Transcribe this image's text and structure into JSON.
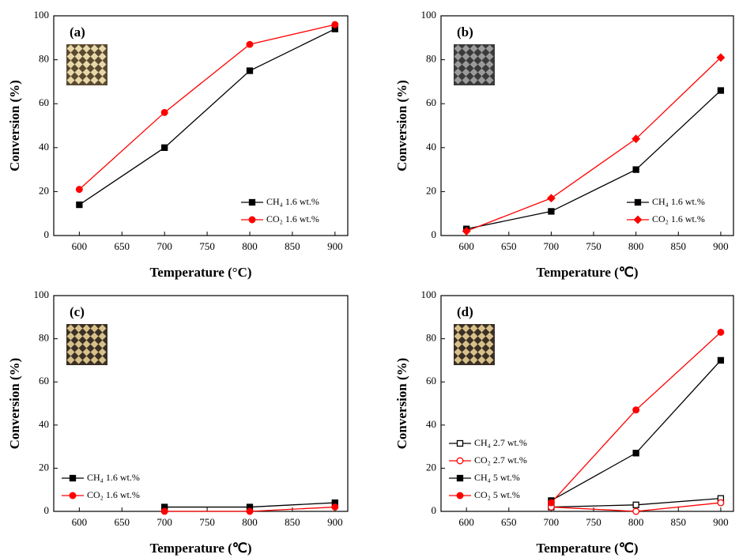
{
  "chart_data": [
    {
      "type": "line",
      "title": "(a)",
      "x_label": "Temperature (°C)",
      "y_label": "Conversion (%)",
      "x": [
        600,
        700,
        800,
        900
      ],
      "xlim": [
        570,
        915
      ],
      "xticks": [
        600,
        650,
        700,
        750,
        800,
        850,
        900
      ],
      "ylim": [
        0,
        100
      ],
      "yticks": [
        0,
        20,
        40,
        60,
        80,
        100
      ],
      "legend": "lower right",
      "series": [
        {
          "name": "CH₄ 1.6 wt.%",
          "color": "#000000",
          "marker": "square",
          "open": false,
          "values": [
            14,
            40,
            75,
            94
          ]
        },
        {
          "name": "CO₂ 1.6 wt.%",
          "color": "#ff0000",
          "marker": "circle",
          "open": false,
          "values": [
            21,
            56,
            87,
            96
          ]
        }
      ]
    },
    {
      "type": "line",
      "title": "(b)",
      "x_label": "Temperature (℃)",
      "y_label": "Conversion (%)",
      "x": [
        600,
        700,
        800,
        900
      ],
      "xlim": [
        570,
        915
      ],
      "xticks": [
        600,
        650,
        700,
        750,
        800,
        850,
        900
      ],
      "ylim": [
        0,
        100
      ],
      "yticks": [
        0,
        20,
        40,
        60,
        80,
        100
      ],
      "legend": "lower right",
      "series": [
        {
          "name": "CH₄ 1.6 wt.%",
          "color": "#000000",
          "marker": "square",
          "open": false,
          "values": [
            3,
            11,
            30,
            66
          ]
        },
        {
          "name": "CO₂ 1.6 wt.%",
          "color": "#ff0000",
          "marker": "diamond",
          "open": false,
          "values": [
            2,
            17,
            44,
            81
          ]
        }
      ]
    },
    {
      "type": "line",
      "title": "(c)",
      "x_label": "Temperature (℃)",
      "y_label": "Conversion (%)",
      "x": [
        700,
        800,
        900
      ],
      "xlim": [
        570,
        915
      ],
      "xticks": [
        600,
        650,
        700,
        750,
        800,
        850,
        900
      ],
      "ylim": [
        0,
        100
      ],
      "yticks": [
        0,
        20,
        40,
        60,
        80,
        100
      ],
      "legend": "lower left",
      "series": [
        {
          "name": "CH₄ 1.6 wt.%",
          "color": "#000000",
          "marker": "square",
          "open": false,
          "values": [
            2,
            2,
            4
          ]
        },
        {
          "name": "CO₂ 1.6 wt.%",
          "color": "#ff0000",
          "marker": "circle",
          "open": false,
          "values": [
            0,
            0,
            2
          ]
        }
      ]
    },
    {
      "type": "line",
      "title": "(d)",
      "x_label": "Temperature (℃)",
      "y_label": "Conversion (%)",
      "x": [
        700,
        800,
        900
      ],
      "xlim": [
        570,
        915
      ],
      "xticks": [
        600,
        650,
        700,
        750,
        800,
        850,
        900
      ],
      "ylim": [
        0,
        100
      ],
      "yticks": [
        0,
        20,
        40,
        60,
        80,
        100
      ],
      "legend": "lower left",
      "series": [
        {
          "name": "CH₄ 2.7 wt.%",
          "color": "#000000",
          "marker": "square",
          "open": true,
          "values": [
            2,
            3,
            6
          ]
        },
        {
          "name": "CO₂ 2.7 wt.%",
          "color": "#ff0000",
          "marker": "circle",
          "open": true,
          "values": [
            2,
            0,
            4
          ]
        },
        {
          "name": "CH₄ 5 wt.%",
          "color": "#000000",
          "marker": "square",
          "open": false,
          "values": [
            5,
            27,
            70
          ]
        },
        {
          "name": "CO₂ 5 wt.%",
          "color": "#ff0000",
          "marker": "circle",
          "open": false,
          "values": [
            4,
            47,
            83
          ]
        }
      ]
    }
  ]
}
